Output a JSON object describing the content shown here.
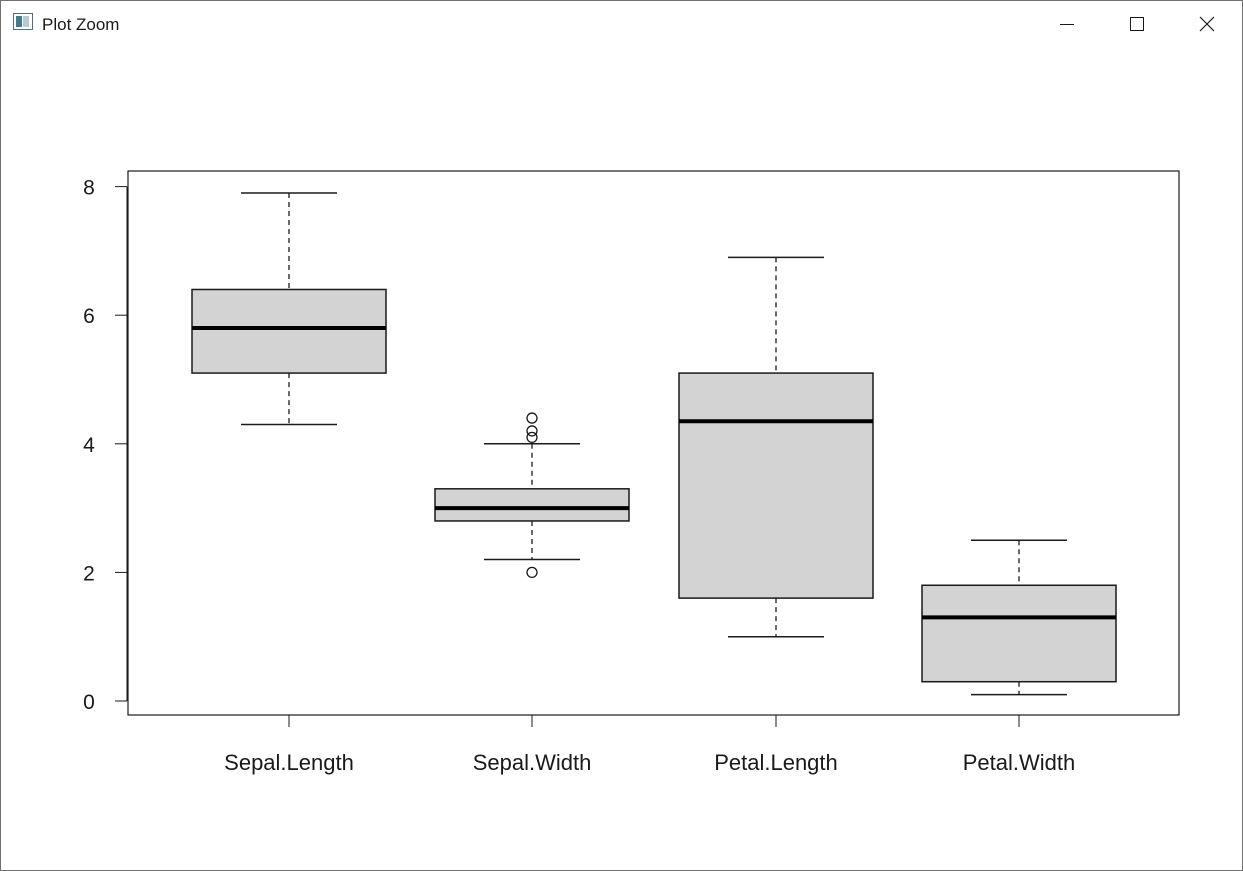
{
  "window": {
    "title": "Plot Zoom",
    "controls": {
      "minimize": "minimize-icon",
      "maximize": "maximize-icon",
      "close": "close-icon"
    }
  },
  "chart_data": {
    "type": "boxplot",
    "title": "",
    "xlabel": "",
    "ylabel": "",
    "ylim": [
      0,
      8
    ],
    "yticks": [
      "0",
      "2",
      "4",
      "6",
      "8"
    ],
    "grid": false,
    "box_fill": "#d3d3d3",
    "categories": [
      "Sepal.Length",
      "Sepal.Width",
      "Petal.Length",
      "Petal.Width"
    ],
    "boxes": [
      {
        "name": "Sepal.Length",
        "whisker_low": 4.3,
        "q1": 5.1,
        "median": 5.8,
        "q3": 6.4,
        "whisker_high": 7.9,
        "outliers": []
      },
      {
        "name": "Sepal.Width",
        "whisker_low": 2.2,
        "q1": 2.8,
        "median": 3.0,
        "q3": 3.3,
        "whisker_high": 4.0,
        "outliers": [
          4.4,
          4.1,
          4.2,
          2.0
        ]
      },
      {
        "name": "Petal.Length",
        "whisker_low": 1.0,
        "q1": 1.6,
        "median": 4.35,
        "q3": 5.1,
        "whisker_high": 6.9,
        "outliers": []
      },
      {
        "name": "Petal.Width",
        "whisker_low": 0.1,
        "q1": 0.3,
        "median": 1.3,
        "q3": 1.8,
        "whisker_high": 2.5,
        "outliers": []
      }
    ]
  }
}
